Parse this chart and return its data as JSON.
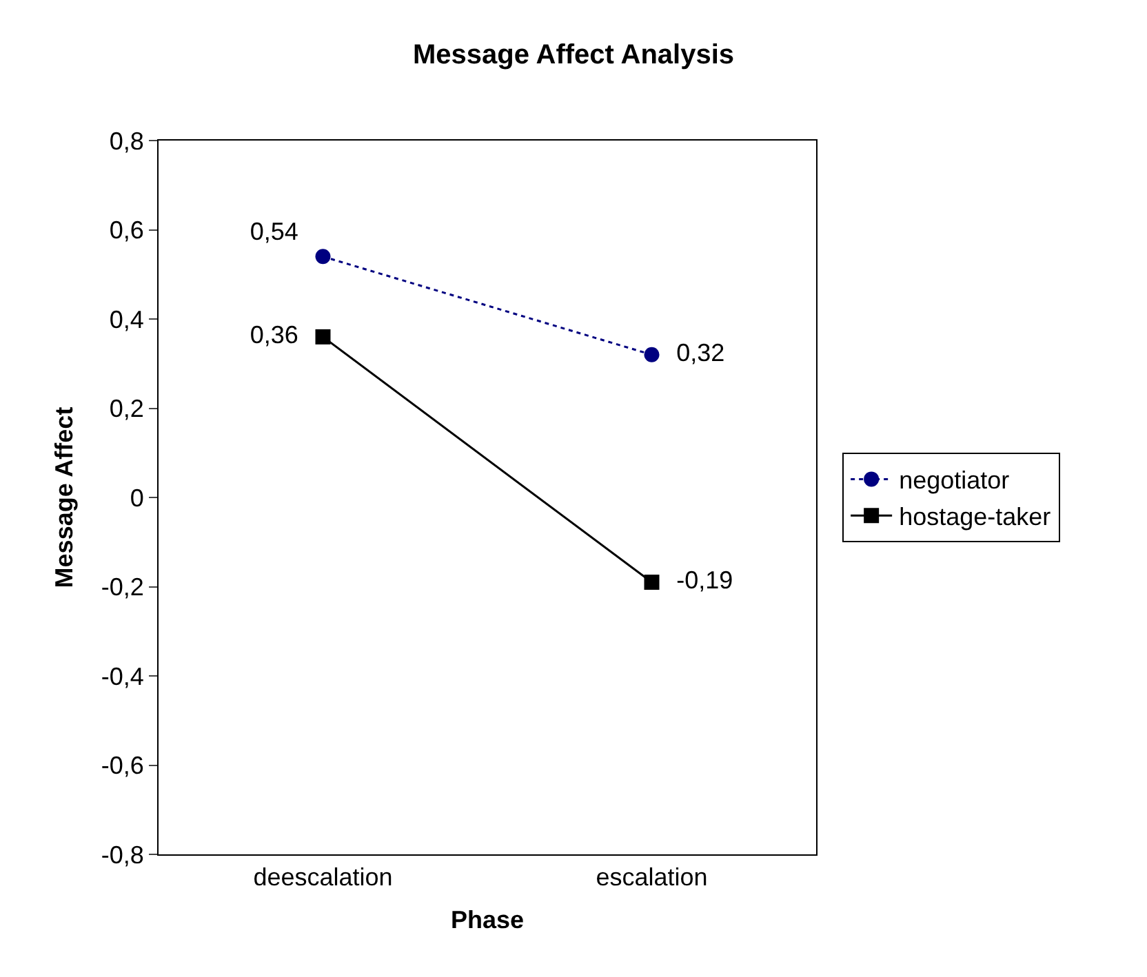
{
  "chart_data": {
    "type": "line",
    "title": "Message Affect Analysis",
    "xlabel": "Phase",
    "ylabel": "Message Affect",
    "categories": [
      "deescalation",
      "escalation"
    ],
    "series": [
      {
        "name": "negotiator",
        "color": "#000080",
        "values": [
          0.54,
          0.32
        ],
        "value_labels": [
          "0,54",
          "0,32"
        ],
        "marker": "circle",
        "line_style": "dotted"
      },
      {
        "name": "hostage-taker",
        "color": "#000000",
        "values": [
          0.36,
          -0.19
        ],
        "value_labels": [
          "0,36",
          "-0,19"
        ],
        "marker": "square",
        "line_style": "solid"
      }
    ],
    "ylim": [
      -0.8,
      0.8
    ],
    "yticks": [
      {
        "value": -0.8,
        "label": "-0,8"
      },
      {
        "value": -0.6,
        "label": "-0,6"
      },
      {
        "value": -0.4,
        "label": "-0,4"
      },
      {
        "value": -0.2,
        "label": "-0,2"
      },
      0,
      {
        "value": 0.2,
        "label": "0,2"
      },
      {
        "value": 0.4,
        "label": "0,4"
      },
      {
        "value": 0.6,
        "label": "0,6"
      },
      {
        "value": 0.8,
        "label": "0,8"
      }
    ],
    "legend": "right"
  }
}
